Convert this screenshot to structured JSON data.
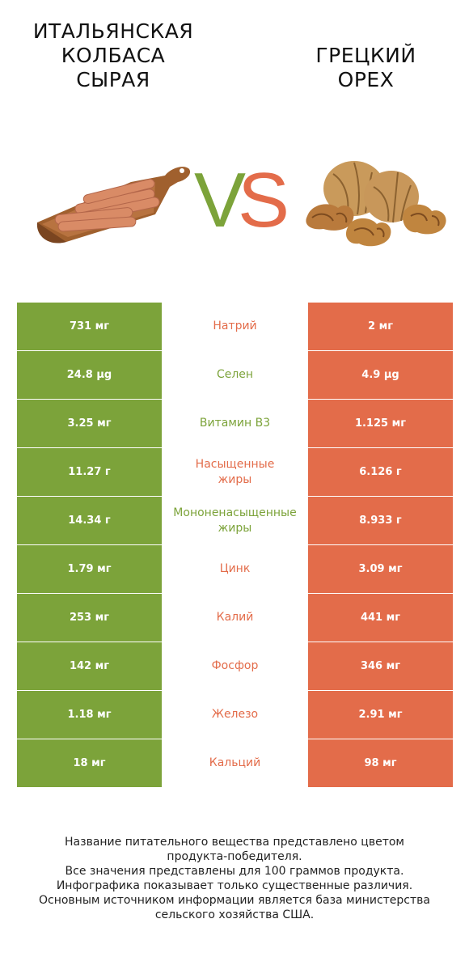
{
  "title_left": [
    "ИТАЛЬЯНСКАЯ",
    "КОЛБАСА",
    "СЫРАЯ"
  ],
  "title_right": [
    "ГРЕЦКИЙ",
    "ОРЕХ"
  ],
  "vs": {
    "v": "V",
    "s": "S"
  },
  "colors": {
    "left": "#7ca33a",
    "right": "#e36c4a"
  },
  "chart_data": {
    "type": "table",
    "series": [
      {
        "name": "Итальянская колбаса сырая",
        "color": "#7ca33a"
      },
      {
        "name": "Грецкий орех",
        "color": "#e36c4a"
      }
    ],
    "rows": [
      {
        "nutrient": [
          "Натрий"
        ],
        "left": "731 мг",
        "right": "2 мг",
        "winner": "right"
      },
      {
        "nutrient": [
          "Селен"
        ],
        "left": "24.8 µg",
        "right": "4.9 µg",
        "winner": "left"
      },
      {
        "nutrient": [
          "Витамин B3"
        ],
        "left": "3.25 мг",
        "right": "1.125 мг",
        "winner": "left"
      },
      {
        "nutrient": [
          "Насыщенные",
          "жиры"
        ],
        "left": "11.27 г",
        "right": "6.126 г",
        "winner": "right"
      },
      {
        "nutrient": [
          "Мононенасыщенные",
          "жиры"
        ],
        "left": "14.34 г",
        "right": "8.933 г",
        "winner": "left"
      },
      {
        "nutrient": [
          "Цинк"
        ],
        "left": "1.79 мг",
        "right": "3.09 мг",
        "winner": "right"
      },
      {
        "nutrient": [
          "Калий"
        ],
        "left": "253 мг",
        "right": "441 мг",
        "winner": "right"
      },
      {
        "nutrient": [
          "Фосфор"
        ],
        "left": "142 мг",
        "right": "346 мг",
        "winner": "right"
      },
      {
        "nutrient": [
          "Железо"
        ],
        "left": "1.18 мг",
        "right": "2.91 мг",
        "winner": "right"
      },
      {
        "nutrient": [
          "Кальций"
        ],
        "left": "18 мг",
        "right": "98 мг",
        "winner": "right"
      }
    ]
  },
  "footnote": [
    "Название питательного вещества представлено цветом",
    "продукта-победителя.",
    "Все значения представлены для 100 граммов продукта.",
    "Инфографика показывает только существенные различия.",
    "Основным источником информации является база министерства",
    "сельского хозяйства США."
  ]
}
